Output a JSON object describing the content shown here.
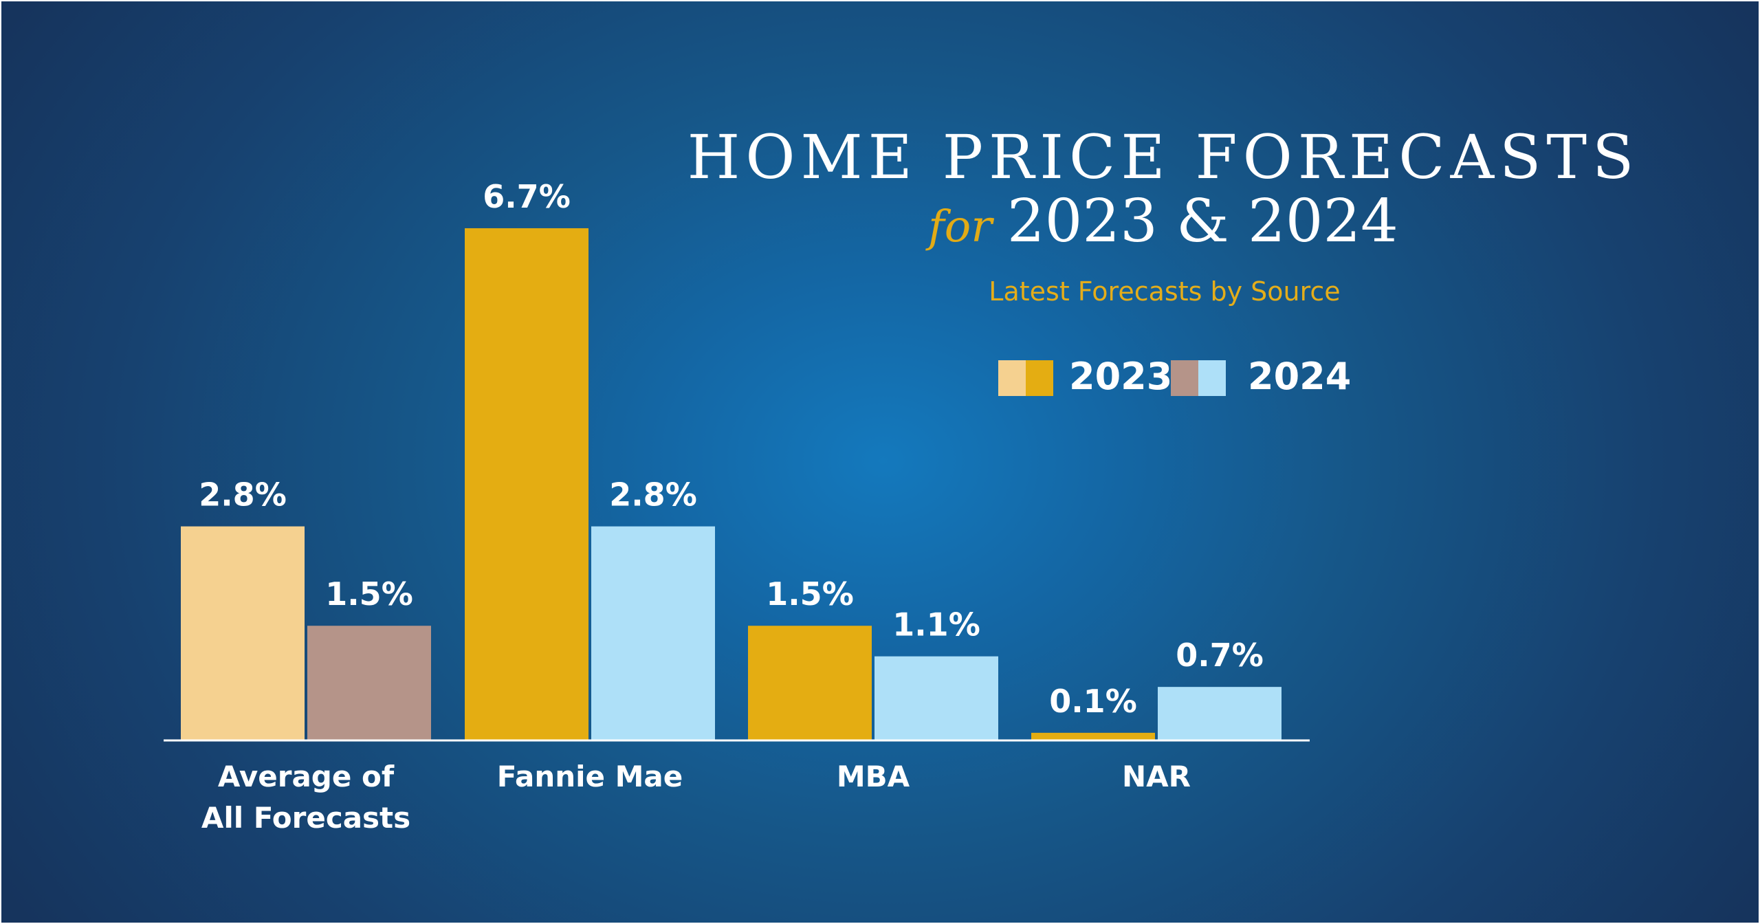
{
  "title": "HOME PRICE FORECASTS",
  "title_for": "for",
  "title_years": "2023 & 2024",
  "subtitle": "Latest Forecasts by Source",
  "legend": [
    {
      "label": "2023",
      "swatch_colors": [
        "#f5d190",
        "#e4ad12"
      ]
    },
    {
      "label": "2024",
      "swatch_colors": [
        "#b59489",
        "#aee0f8"
      ]
    }
  ],
  "colors": {
    "gold": "#e4ad12",
    "light_blue": "#aee0f8",
    "pale_gold": "#f5d190",
    "mauve": "#b59489",
    "background": "#1467a5"
  },
  "chart_data": {
    "type": "bar",
    "title": "HOME PRICE FORECASTS for 2023 & 2024",
    "subtitle": "Latest Forecasts by Source",
    "categories": [
      "Average of All Forecasts",
      "Fannie Mae",
      "MBA",
      "NAR"
    ],
    "category_lines": [
      [
        "Average of",
        "All Forecasts"
      ],
      [
        "Fannie Mae"
      ],
      [
        "MBA"
      ],
      [
        "NAR"
      ]
    ],
    "series": [
      {
        "name": "2023",
        "values": [
          2.8,
          6.7,
          1.5,
          0.1
        ],
        "labels": [
          "2.8%",
          "6.7%",
          "1.5%",
          "0.1%"
        ],
        "colors": [
          "#f5d190",
          "#e4ad12",
          "#e4ad12",
          "#e4ad12"
        ]
      },
      {
        "name": "2024",
        "values": [
          1.5,
          2.8,
          1.1,
          0.7
        ],
        "labels": [
          "1.5%",
          "2.8%",
          "1.1%",
          "0.7%"
        ],
        "colors": [
          "#b59489",
          "#aee0f8",
          "#aee0f8",
          "#aee0f8"
        ]
      }
    ],
    "ylim": [
      0,
      6.7
    ],
    "grid": false,
    "legend_position": "top-right",
    "xlabel": "",
    "ylabel": ""
  }
}
